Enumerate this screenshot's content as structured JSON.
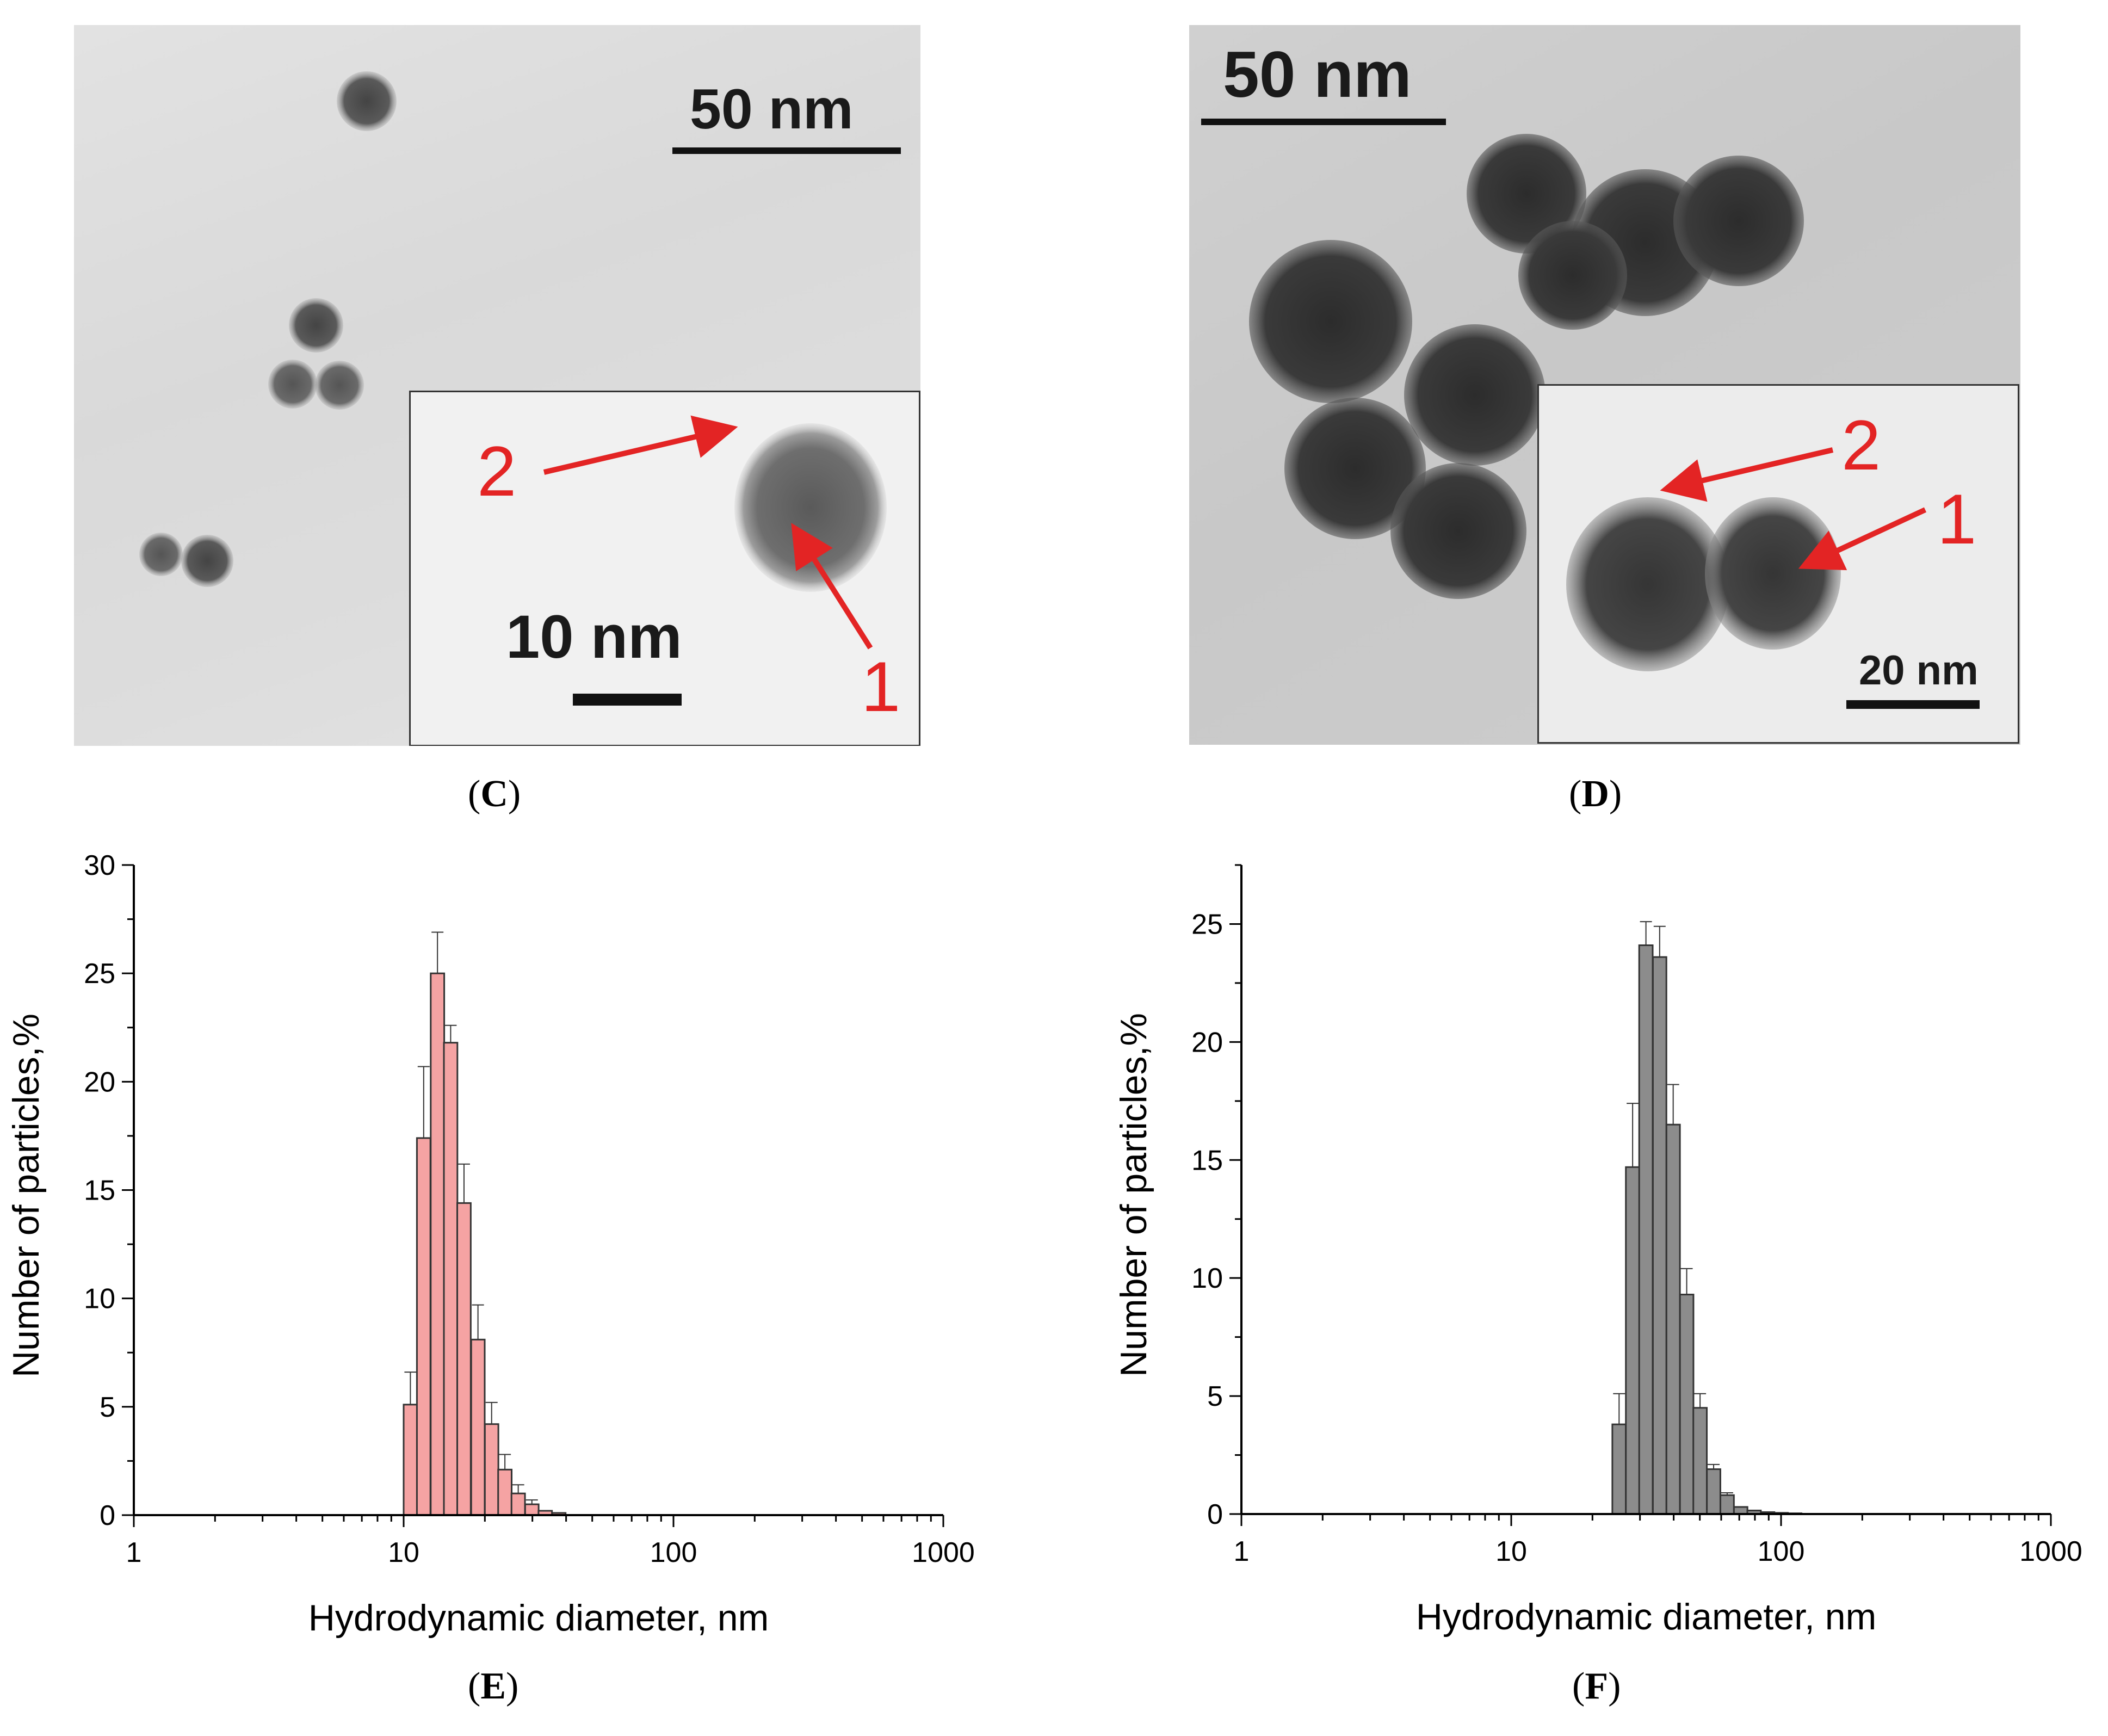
{
  "panels": {
    "c": {
      "label_open": "(",
      "letter": "C",
      "label_close": ")",
      "scale_main": "50 nm",
      "scale_inset": "10 nm",
      "marker_1": "1",
      "marker_2": "2"
    },
    "d": {
      "label_open": "(",
      "letter": "D",
      "label_close": ")",
      "scale_main": "50 nm",
      "scale_inset": "20 nm",
      "marker_1": "1",
      "marker_2": "2"
    },
    "e": {
      "label_open": "(",
      "letter": "E",
      "label_close": ")"
    },
    "f": {
      "label_open": "(",
      "letter": "F",
      "label_close": ")"
    }
  },
  "colors": {
    "bar_e": "#f5a3a3",
    "bar_f": "#8c8c8c",
    "arrow": "#e32424"
  },
  "chart_data": [
    {
      "panel": "E",
      "type": "bar",
      "xscale": "log",
      "xlim": [
        1,
        1000
      ],
      "ylim": [
        0,
        30
      ],
      "xticks": [
        1,
        10,
        100,
        1000
      ],
      "yticks": [
        0,
        5,
        10,
        15,
        20,
        25,
        30
      ],
      "xlabel": "Hydrodynamic diameter, nm",
      "ylabel": "Number of particles,%",
      "bin_ratio": 1.122,
      "bars": [
        {
          "x": 10.0,
          "y": 5.1,
          "err": 1.5
        },
        {
          "x": 11.2,
          "y": 17.4,
          "err": 3.3
        },
        {
          "x": 12.6,
          "y": 25.0,
          "err": 1.9
        },
        {
          "x": 14.1,
          "y": 21.8,
          "err": 0.8
        },
        {
          "x": 15.8,
          "y": 14.4,
          "err": 1.8
        },
        {
          "x": 17.8,
          "y": 8.1,
          "err": 1.6
        },
        {
          "x": 20.0,
          "y": 4.2,
          "err": 1.0
        },
        {
          "x": 22.4,
          "y": 2.1,
          "err": 0.7
        },
        {
          "x": 25.1,
          "y": 1.0,
          "err": 0.4
        },
        {
          "x": 28.2,
          "y": 0.5,
          "err": 0.2
        },
        {
          "x": 31.6,
          "y": 0.2,
          "err": 0.1
        },
        {
          "x": 35.5,
          "y": 0.1,
          "err": 0.05
        }
      ]
    },
    {
      "panel": "F",
      "type": "bar",
      "xscale": "log",
      "xlim": [
        1,
        1000
      ],
      "ylim": [
        0,
        27.5
      ],
      "xticks": [
        1,
        10,
        100,
        1000
      ],
      "yticks": [
        0,
        5,
        10,
        15,
        20,
        25
      ],
      "xlabel": "Hydrodynamic diameter, nm",
      "ylabel": "Number of particles,%",
      "bin_ratio": 1.122,
      "bars": [
        {
          "x": 23.7,
          "y": 3.8,
          "err": 1.3
        },
        {
          "x": 26.6,
          "y": 14.7,
          "err": 2.7
        },
        {
          "x": 29.8,
          "y": 24.1,
          "err": 1.0
        },
        {
          "x": 33.5,
          "y": 23.6,
          "err": 1.3
        },
        {
          "x": 37.6,
          "y": 16.5,
          "err": 1.7
        },
        {
          "x": 42.2,
          "y": 9.3,
          "err": 1.1
        },
        {
          "x": 47.3,
          "y": 4.5,
          "err": 0.6
        },
        {
          "x": 53.1,
          "y": 1.9,
          "err": 0.2
        },
        {
          "x": 59.6,
          "y": 0.8,
          "err": 0.1
        },
        {
          "x": 66.9,
          "y": 0.3,
          "err": 0.05
        },
        {
          "x": 75.0,
          "y": 0.15,
          "err": 0.03
        },
        {
          "x": 84.2,
          "y": 0.08,
          "err": 0.02
        },
        {
          "x": 94.5,
          "y": 0.05,
          "err": 0.01
        },
        {
          "x": 106.1,
          "y": 0.03,
          "err": 0.01
        }
      ]
    }
  ]
}
